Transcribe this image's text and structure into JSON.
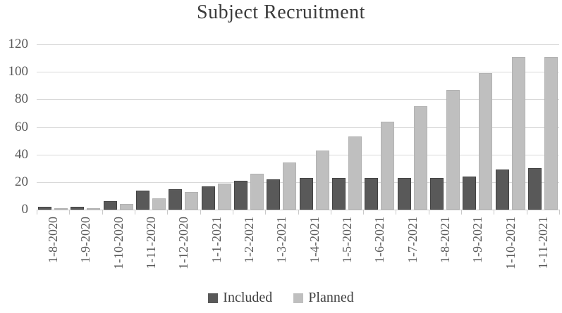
{
  "chart_data": {
    "type": "bar",
    "title": "Subject Recruitment",
    "xlabel": "",
    "ylabel": "",
    "categories": [
      "1-8-2020",
      "1-9-2020",
      "1-10-2020",
      "1-11-2020",
      "1-12-2020",
      "1-1-2021",
      "1-2-2021",
      "1-3-2021",
      "1-4-2021",
      "1-5-2021",
      "1-6-2021",
      "1-7-2021",
      "1-8-2021",
      "1-9-2021",
      "1-10-2021",
      "1-11-2021"
    ],
    "series": [
      {
        "name": "Included",
        "color": "#595959",
        "values": [
          2,
          2,
          6,
          14,
          15,
          17,
          21,
          22,
          23,
          23,
          23,
          23,
          23,
          24,
          29,
          30
        ]
      },
      {
        "name": "Planned",
        "color": "#bfbfbf",
        "values": [
          1,
          1,
          4,
          8,
          13,
          19,
          26,
          34,
          43,
          53,
          64,
          75,
          87,
          99,
          111,
          111
        ]
      }
    ],
    "ylim": [
      0,
      120
    ],
    "yticks": [
      0,
      20,
      40,
      60,
      80,
      100,
      120
    ],
    "grid": true,
    "legend_position": "bottom",
    "colors": {
      "gridline": "#d9d9d9",
      "axis": "#c9c9c9",
      "title_text": "#3b3b3b",
      "tick_text": "#595959",
      "legend_text": "#404040"
    }
  }
}
